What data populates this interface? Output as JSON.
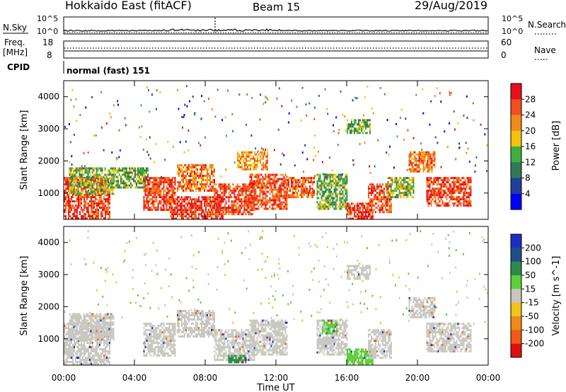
{
  "header": {
    "station": "Hokkaido East (fitACF)",
    "beam": "Beam 15",
    "date": "29/Aug/2019"
  },
  "side_labels": {
    "nsky": "N.Sky",
    "freq_line1": "Freq.",
    "freq_line2": "[MHz]",
    "cpid": "CPID",
    "nsearch": "N.Search",
    "nave": "Nave"
  },
  "top_axes": {
    "noise_left_ticks": [
      "10^5",
      "10^0"
    ],
    "noise_right_ticks": [
      "10^5",
      "10^0"
    ],
    "freq_left_ticks": [
      "18",
      "8"
    ],
    "freq_right_ticks": [
      "60",
      "0"
    ]
  },
  "cpid_text": "normal (fast) 151",
  "colors": {
    "power_scale": [
      "#0000ff",
      "#1f3f9a",
      "#2e7a55",
      "#3fae3f",
      "#f4c20d",
      "#f28a1a",
      "#f0501e",
      "#e8101a"
    ],
    "velocity_scale": [
      "#1a2fc2",
      "#1f4e8a",
      "#2e8a4a",
      "#5ccf3a",
      "#c8c8c0",
      "#f2c31a",
      "#f08a18",
      "#ef5a17",
      "#e01010"
    ]
  },
  "chart_data": [
    {
      "type": "heatmap",
      "title": "",
      "xlabel": "",
      "ylabel": "Slant Range [km]",
      "xlim": [
        0,
        24
      ],
      "ylim": [
        180,
        4500
      ],
      "xticks": [
        "00:00",
        "04:00",
        "08:00",
        "12:00",
        "16:00",
        "20:00",
        "00:00"
      ],
      "yticks": [
        1000,
        2000,
        3000,
        4000
      ],
      "colorbar": {
        "label": "Power [dB]",
        "ticks": [
          4,
          8,
          12,
          16,
          20,
          24,
          28
        ]
      },
      "regions": [
        {
          "t0": 0.0,
          "t1": 2.6,
          "r0": 200,
          "r1": 1500,
          "v": 27
        },
        {
          "t0": 0.3,
          "t1": 2.8,
          "r0": 1000,
          "r1": 1800,
          "v": 15
        },
        {
          "t0": 2.8,
          "t1": 4.8,
          "r0": 1200,
          "r1": 1800,
          "v": 14
        },
        {
          "t0": 4.5,
          "t1": 6.3,
          "r0": 500,
          "r1": 1500,
          "v": 26
        },
        {
          "t0": 6.4,
          "t1": 8.5,
          "r0": 1100,
          "r1": 1900,
          "v": 24
        },
        {
          "t0": 6.0,
          "t1": 9.0,
          "r0": 200,
          "r1": 900,
          "v": 28
        },
        {
          "t0": 8.5,
          "t1": 10.8,
          "r0": 350,
          "r1": 1300,
          "v": 27
        },
        {
          "t0": 9.8,
          "t1": 11.5,
          "r0": 1750,
          "r1": 2300,
          "v": 22
        },
        {
          "t0": 10.5,
          "t1": 12.6,
          "r0": 500,
          "r1": 1600,
          "v": 26
        },
        {
          "t0": 12.6,
          "t1": 14.2,
          "r0": 900,
          "r1": 1500,
          "v": 25
        },
        {
          "t0": 14.3,
          "t1": 16.0,
          "r0": 500,
          "r1": 1600,
          "v": 14
        },
        {
          "t0": 16.0,
          "t1": 17.5,
          "r0": 200,
          "r1": 700,
          "v": 27
        },
        {
          "t0": 17.2,
          "t1": 18.5,
          "r0": 400,
          "r1": 1300,
          "v": 26
        },
        {
          "t0": 18.3,
          "t1": 19.8,
          "r0": 900,
          "r1": 1500,
          "v": 16
        },
        {
          "t0": 19.5,
          "t1": 21.0,
          "r0": 1700,
          "r1": 2300,
          "v": 24
        },
        {
          "t0": 20.5,
          "t1": 23.0,
          "r0": 600,
          "r1": 1500,
          "v": 27
        },
        {
          "t0": 16.0,
          "t1": 17.3,
          "r0": 2900,
          "r1": 3300,
          "v": 14
        }
      ]
    },
    {
      "type": "heatmap",
      "title": "",
      "xlabel": "Time UT",
      "ylabel": "Slant Range [km]",
      "xlim": [
        0,
        24
      ],
      "ylim": [
        180,
        4500
      ],
      "xticks": [
        "00:00",
        "04:00",
        "08:00",
        "12:00",
        "16:00",
        "20:00",
        "00:00"
      ],
      "yticks": [
        1000,
        2000,
        3000,
        4000
      ],
      "colorbar": {
        "label": "Velocity [m s^-1]",
        "ticks": [
          200,
          100,
          50,
          15,
          -15,
          -50,
          -100,
          -200
        ]
      },
      "regions": [
        {
          "t0": 0.0,
          "t1": 2.6,
          "r0": 200,
          "r1": 1500,
          "v": 0
        },
        {
          "t0": 0.3,
          "t1": 2.8,
          "r0": 1000,
          "r1": 1800,
          "v": 0
        },
        {
          "t0": 4.5,
          "t1": 6.3,
          "r0": 500,
          "r1": 1500,
          "v": 0
        },
        {
          "t0": 6.4,
          "t1": 8.5,
          "r0": 1100,
          "r1": 1900,
          "v": 0
        },
        {
          "t0": 8.5,
          "t1": 10.8,
          "r0": 350,
          "r1": 1300,
          "v": 0
        },
        {
          "t0": 9.3,
          "t1": 10.3,
          "r0": 300,
          "r1": 500,
          "v": 60
        },
        {
          "t0": 10.5,
          "t1": 12.6,
          "r0": 500,
          "r1": 1600,
          "v": 0
        },
        {
          "t0": 14.3,
          "t1": 16.0,
          "r0": 500,
          "r1": 1600,
          "v": 0
        },
        {
          "t0": 14.6,
          "t1": 15.4,
          "r0": 1200,
          "r1": 1600,
          "v": 40
        },
        {
          "t0": 16.0,
          "t1": 17.5,
          "r0": 200,
          "r1": 700,
          "v": 30
        },
        {
          "t0": 17.2,
          "t1": 18.5,
          "r0": 400,
          "r1": 1300,
          "v": 0
        },
        {
          "t0": 19.5,
          "t1": 21.0,
          "r0": 1700,
          "r1": 2300,
          "v": 0
        },
        {
          "t0": 20.5,
          "t1": 23.0,
          "r0": 600,
          "r1": 1500,
          "v": 0
        },
        {
          "t0": 16.0,
          "t1": 17.3,
          "r0": 2900,
          "r1": 3300,
          "v": 0
        }
      ]
    }
  ]
}
